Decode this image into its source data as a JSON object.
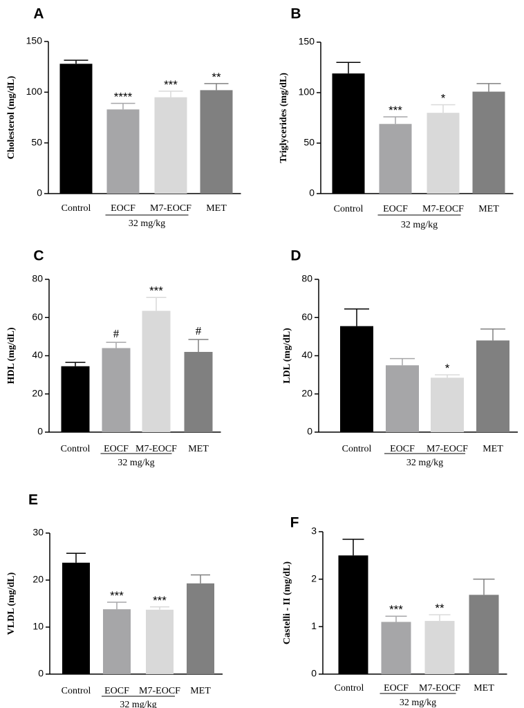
{
  "figure": {
    "colors": [
      "#000000",
      "#a6a6a8",
      "#d9d9d9",
      "#808080"
    ],
    "axis_color": "#000000",
    "group_label": "32 mg/kg"
  },
  "chart_data": [
    {
      "panel": "A",
      "type": "bar",
      "categories": [
        "Control",
        "EOCF",
        "M7-EOCF",
        "MET"
      ],
      "values": [
        128,
        83,
        95,
        102
      ],
      "errors": [
        3.5,
        6,
        6,
        6.5
      ],
      "annotations": [
        "",
        "****",
        "***",
        "**"
      ],
      "ylabel": "Cholesterol (mg/dL)",
      "ylim": [
        0,
        150
      ],
      "yticks": [
        0,
        50,
        100,
        150
      ],
      "group_label": "32 mg/kg"
    },
    {
      "panel": "B",
      "type": "bar",
      "categories": [
        "Control",
        "EOCF",
        "M7-EOCF",
        "MET"
      ],
      "values": [
        119,
        69,
        80,
        101
      ],
      "errors": [
        11,
        7,
        8,
        8
      ],
      "annotations": [
        "",
        "***",
        "*",
        ""
      ],
      "ylabel": "Triglycerides (mg/dL)",
      "ylim": [
        0,
        150
      ],
      "yticks": [
        0,
        50,
        100,
        150
      ],
      "group_label": "32 mg/kg"
    },
    {
      "panel": "C",
      "type": "bar",
      "categories": [
        "Control",
        "EOCF",
        "M7-EOCF",
        "MET"
      ],
      "values": [
        34.5,
        44,
        63.5,
        42
      ],
      "errors": [
        2,
        3,
        7,
        6.5
      ],
      "annotations": [
        "",
        "#",
        "***",
        "#"
      ],
      "ylabel": "HDL (mg/dL)",
      "ylim": [
        0,
        80
      ],
      "yticks": [
        0,
        20,
        40,
        60,
        80
      ],
      "group_label": "32 mg/kg"
    },
    {
      "panel": "D",
      "type": "bar",
      "categories": [
        "Control",
        "EOCF",
        "M7-EOCF",
        "MET"
      ],
      "values": [
        55.5,
        35,
        28.5,
        48
      ],
      "errors": [
        9,
        3.5,
        1.5,
        6
      ],
      "annotations": [
        "",
        "",
        "*",
        ""
      ],
      "ylabel": "LDL (mg/dL)",
      "ylim": [
        0,
        80
      ],
      "yticks": [
        0,
        20,
        40,
        60,
        80
      ],
      "group_label": "32 mg/kg"
    },
    {
      "panel": "E",
      "type": "bar",
      "categories": [
        "Control",
        "EOCF",
        "M7-EOCF",
        "MET"
      ],
      "values": [
        23.7,
        13.8,
        13.7,
        19.3
      ],
      "errors": [
        2,
        1.5,
        0.6,
        1.8
      ],
      "annotations": [
        "",
        "***",
        "***",
        ""
      ],
      "ylabel": "VLDL (mg/dL)",
      "ylim": [
        0,
        30
      ],
      "yticks": [
        0,
        10,
        20,
        30
      ],
      "group_label": "32 mg/kg"
    },
    {
      "panel": "F",
      "type": "bar",
      "categories": [
        "Control",
        "EOCF",
        "M7-EOCF",
        "MET"
      ],
      "values": [
        2.5,
        1.1,
        1.12,
        1.67
      ],
      "errors": [
        0.34,
        0.12,
        0.13,
        0.33
      ],
      "annotations": [
        "",
        "***",
        "**",
        ""
      ],
      "ylabel": "Castelli - II (mg/dL)",
      "ylim": [
        0,
        3
      ],
      "yticks": [
        0,
        1,
        2,
        3
      ],
      "group_label": "32 mg/kg"
    }
  ]
}
